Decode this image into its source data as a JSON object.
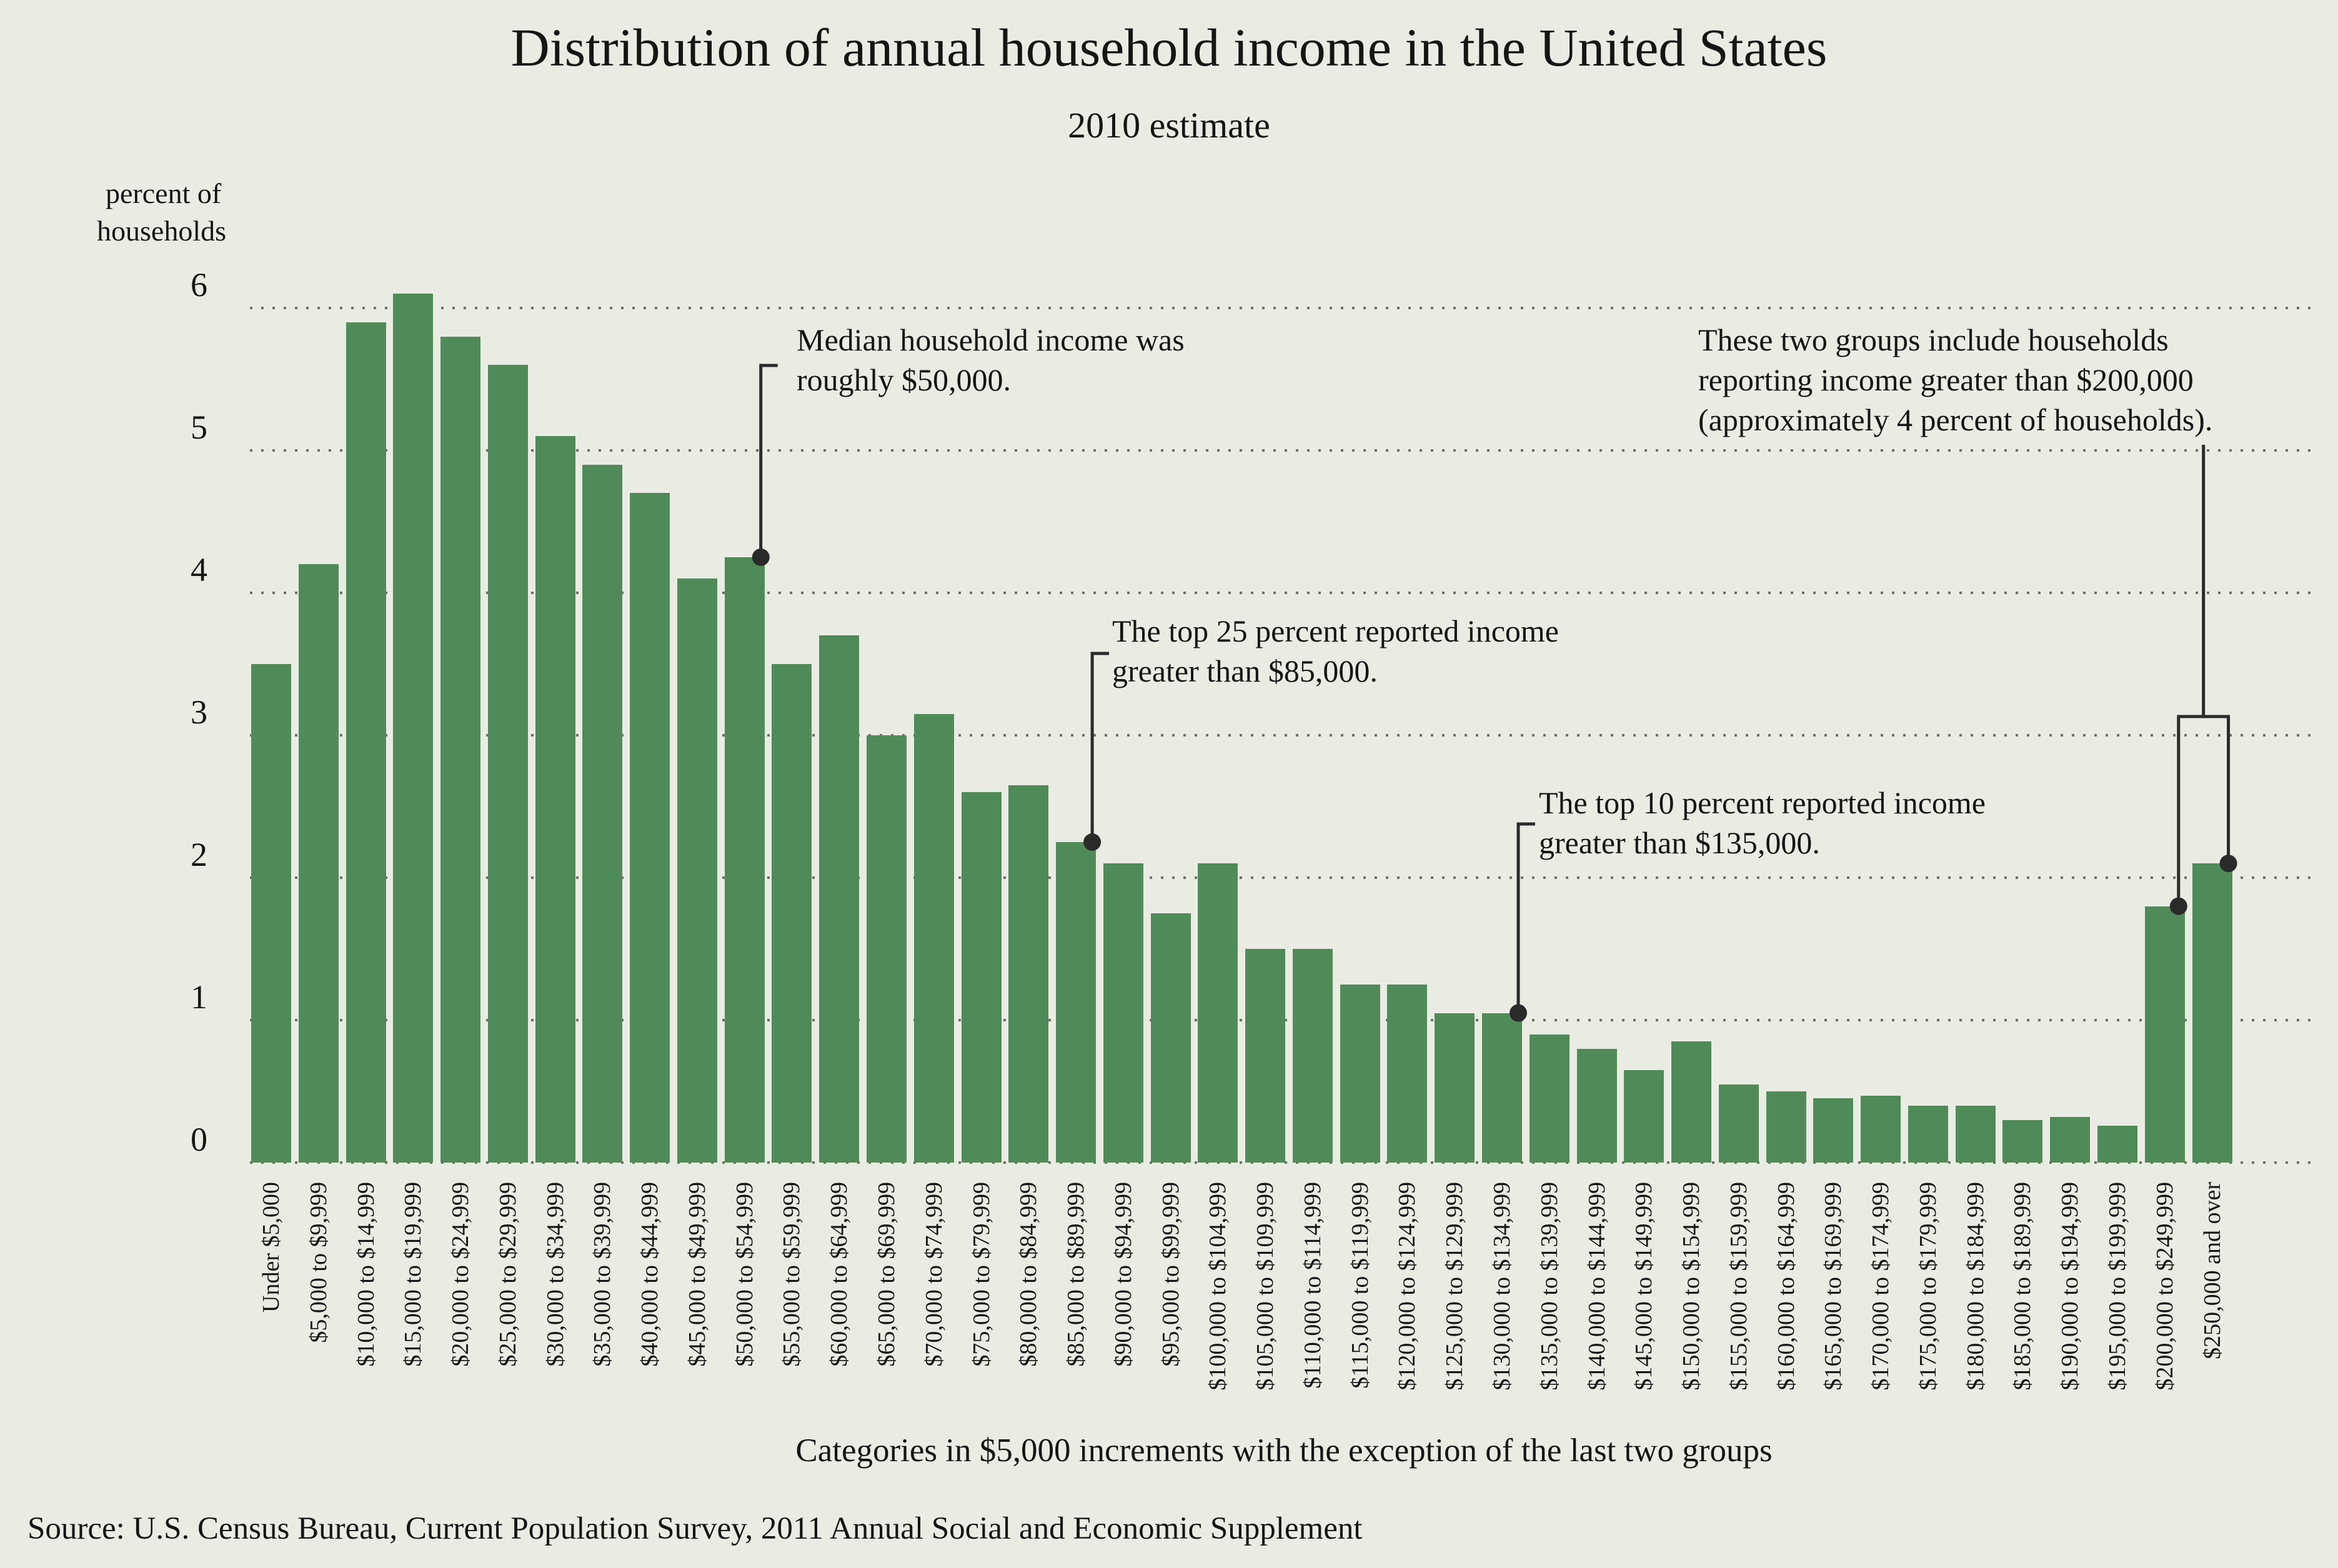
{
  "page": {
    "background": "#eaece3"
  },
  "chart_data": {
    "type": "bar",
    "title": "Distribution of annual household income in the United States",
    "subtitle": "2010 estimate",
    "ylabel_lines": [
      "percent of",
      "households"
    ],
    "y_ticks": [
      0,
      1,
      2,
      3,
      4,
      5,
      6
    ],
    "ylim": [
      0,
      6.3
    ],
    "grid": "dotted horizontal gridlines at each integer, drawn behind bars",
    "legend": "none",
    "bar_color": "#4f8b58",
    "background_color": "#eaece3",
    "annotation_line_color": "#2a2a2a",
    "categories": [
      "Under $5,000",
      "$5,000 to $9,999",
      "$10,000 to $14,999",
      "$15,000 to $19,999",
      "$20,000 to $24,999",
      "$25,000 to $29,999",
      "$30,000 to $34,999",
      "$35,000 to $39,999",
      "$40,000 to $44,999",
      "$45,000 to $49,999",
      "$50,000 to $54,999",
      "$55,000 to $59,999",
      "$60,000 to $64,999",
      "$65,000 to $69,999",
      "$70,000 to $74,999",
      "$75,000 to $79,999",
      "$80,000 to $84,999",
      "$85,000 to $89,999",
      "$90,000 to $94,999",
      "$95,000 to $99,999",
      "$100,000 to $104,999",
      "$105,000 to $109,999",
      "$110,000 to $114,999",
      "$115,000 to $119,999",
      "$120,000 to $124,999",
      "$125,000 to $129,999",
      "$130,000 to $134,999",
      "$135,000 to $139,999",
      "$140,000 to $144,999",
      "$145,000 to $149,999",
      "$150,000 to $154,999",
      "$155,000 to $159,999",
      "$160,000 to $164,999",
      "$165,000 to $169,999",
      "$170,000 to $174,999",
      "$175,000 to $179,999",
      "$180,000 to $184,999",
      "$185,000 to $189,999",
      "$190,000 to $194,999",
      "$195,000 to $199,999",
      "$200,000 to $249,999",
      "$250,000 and over"
    ],
    "values": [
      3.5,
      4.2,
      5.9,
      6.1,
      5.8,
      5.6,
      5.1,
      4.9,
      4.7,
      4.1,
      4.25,
      3.5,
      3.7,
      3.0,
      3.15,
      2.6,
      2.65,
      2.25,
      2.1,
      1.75,
      2.1,
      1.5,
      1.5,
      1.25,
      1.25,
      1.05,
      1.05,
      0.9,
      0.8,
      0.65,
      0.85,
      0.55,
      0.5,
      0.45,
      0.47,
      0.4,
      0.4,
      0.3,
      0.32,
      0.26,
      1.8,
      2.1
    ],
    "annotations": [
      {
        "id": "median",
        "lines": [
          "Median household income was",
          "roughly $50,000."
        ],
        "target_category": "$50,000 to $54,999"
      },
      {
        "id": "top25",
        "lines": [
          "The top 25 percent reported income",
          "greater than $85,000."
        ],
        "target_category": "$85,000 to $89,999"
      },
      {
        "id": "top10",
        "lines": [
          "The top 10 percent reported income",
          "greater than $135,000."
        ],
        "target_category": "$130,000 to $134,999"
      },
      {
        "id": "top-groups",
        "lines": [
          "These two groups include households",
          "reporting income greater than $200,000",
          "(approximately 4 percent of households)."
        ],
        "target_categories": [
          "$200,000 to $249,999",
          "$250,000 and over"
        ]
      }
    ],
    "xlabel": "Categories in $5,000 increments with the exception of the last two groups",
    "source": "Source: U.S. Census Bureau, Current Population Survey, 2011 Annual Social and Economic Supplement"
  }
}
